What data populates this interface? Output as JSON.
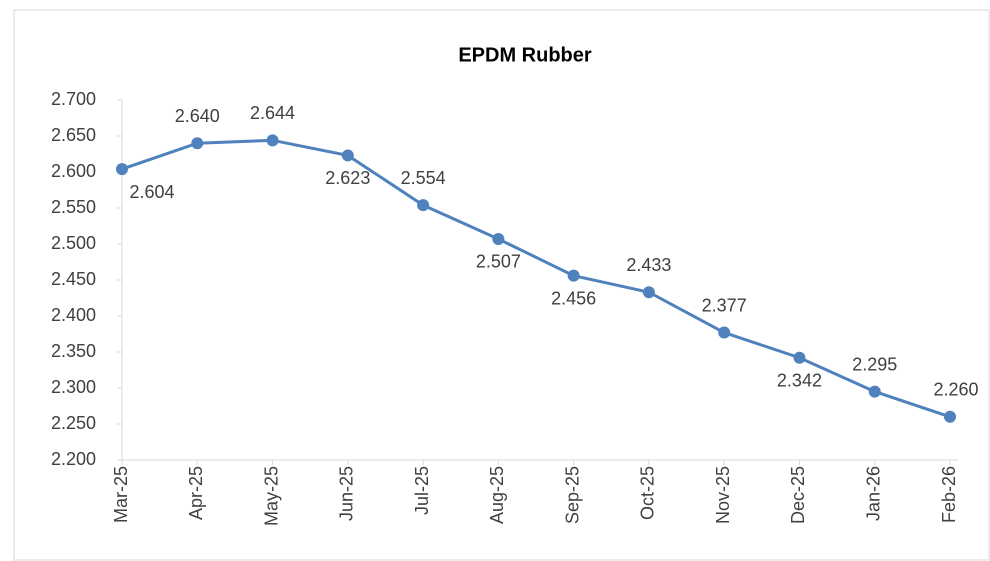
{
  "chart_data": {
    "type": "line",
    "title": "EPDM Rubber",
    "categories": [
      "Mar-25",
      "Apr-25",
      "May-25",
      "Jun-25",
      "Jul-25",
      "Aug-25",
      "Sep-25",
      "Oct-25",
      "Nov-25",
      "Dec-25",
      "Jan-26",
      "Feb-26"
    ],
    "series": [
      {
        "name": "EPDM Rubber",
        "color": "#4f81bd",
        "values": [
          2.604,
          2.64,
          2.644,
          2.623,
          2.554,
          2.507,
          2.456,
          2.433,
          2.377,
          2.342,
          2.295,
          2.26
        ],
        "value_labels": [
          "2.604",
          "2.640",
          "2.644",
          "2.623",
          "2.554",
          "2.507",
          "2.456",
          "2.433",
          "2.377",
          "2.342",
          "2.295",
          "2.260"
        ]
      }
    ],
    "ylim": [
      2.2,
      2.7
    ],
    "yticks": [
      {
        "value": 2.2,
        "label": "2.200"
      },
      {
        "value": 2.25,
        "label": "2.250"
      },
      {
        "value": 2.3,
        "label": "2.300"
      },
      {
        "value": 2.35,
        "label": "2.350"
      },
      {
        "value": 2.4,
        "label": "2.400"
      },
      {
        "value": 2.45,
        "label": "2.450"
      },
      {
        "value": 2.5,
        "label": "2.500"
      },
      {
        "value": 2.55,
        "label": "2.550"
      },
      {
        "value": 2.6,
        "label": "2.600"
      },
      {
        "value": 2.65,
        "label": "2.650"
      },
      {
        "value": 2.7,
        "label": "2.700"
      }
    ],
    "grid": false
  }
}
